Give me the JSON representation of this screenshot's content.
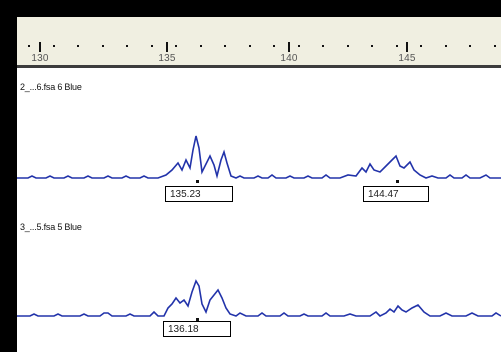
{
  "ruler": {
    "ticks": [
      "130",
      "135",
      "140",
      "145"
    ],
    "background": "#f0efe1"
  },
  "tracks": [
    {
      "name": "2_...6.fsa  6 Blue",
      "peak_labels": [
        "135.23",
        "144.47"
      ]
    },
    {
      "name": "3_...5.fsa  5 Blue",
      "peak_labels": [
        "136.18"
      ]
    }
  ],
  "colors": {
    "trace": "#2233aa",
    "frame": "#000000"
  }
}
